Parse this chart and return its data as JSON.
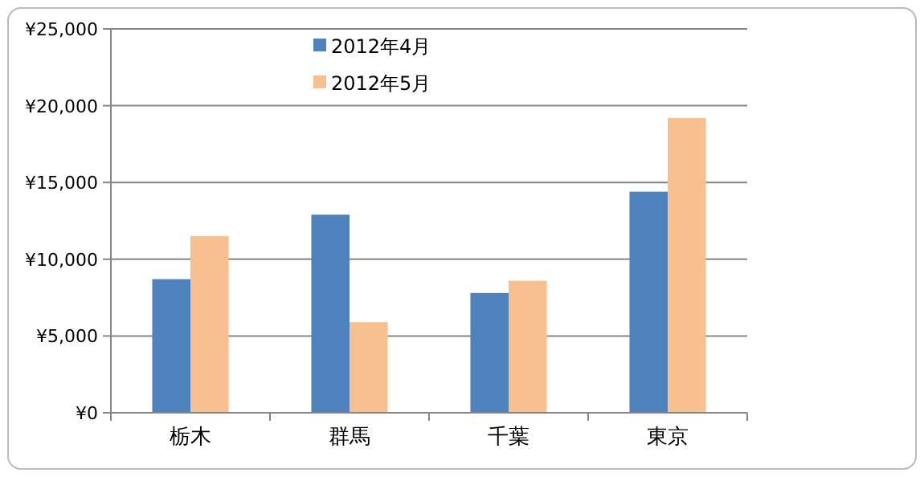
{
  "chart_data": {
    "type": "bar",
    "categories": [
      "栃木",
      "群馬",
      "千葉",
      "東京"
    ],
    "series": [
      {
        "name": "2012年4月",
        "color": "#4f81bd",
        "values": [
          8700,
          12900,
          7800,
          14400
        ]
      },
      {
        "name": "2012年5月",
        "color": "#f9c08f",
        "values": [
          11500,
          5900,
          8600,
          19200
        ]
      }
    ],
    "ylim": [
      0,
      25000
    ],
    "yticks": [
      {
        "value": 0,
        "label": "¥0"
      },
      {
        "value": 5000,
        "label": "¥5,000"
      },
      {
        "value": 10000,
        "label": "¥10,000"
      },
      {
        "value": 15000,
        "label": "¥15,000"
      },
      {
        "value": 20000,
        "label": "¥20,000"
      },
      {
        "value": 25000,
        "label": "¥25,000"
      }
    ],
    "grid": "y",
    "legend": "top"
  }
}
